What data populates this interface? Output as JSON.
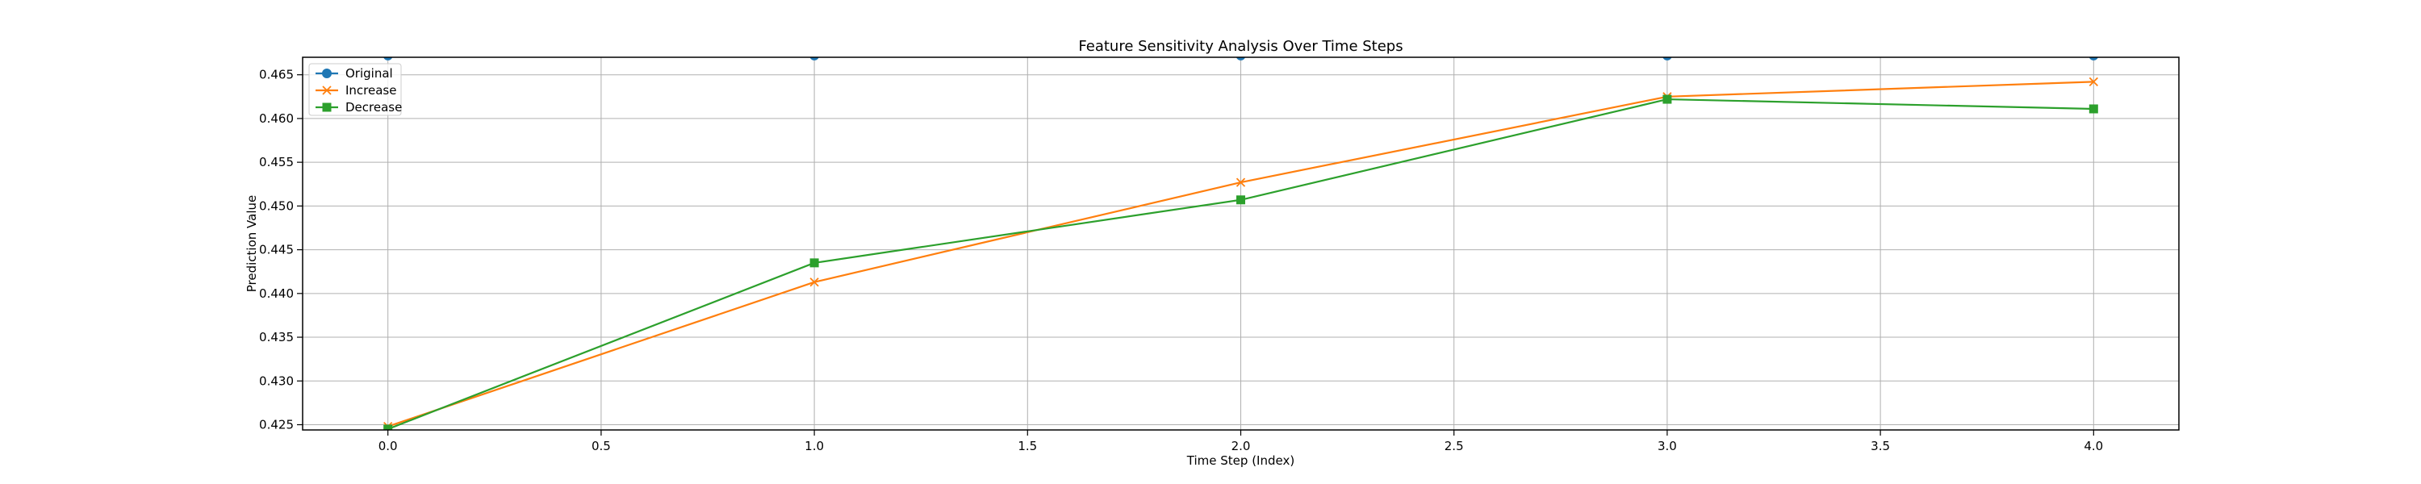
{
  "chart_data": {
    "type": "line",
    "title": "Feature Sensitivity Analysis Over Time Steps",
    "xlabel": "Time Step (Index)",
    "ylabel": "Prediction Value",
    "x": [
      0,
      1,
      2,
      3,
      4
    ],
    "xlim": [
      -0.2,
      4.2
    ],
    "ylim": [
      0.4244,
      0.467
    ],
    "xticks": [
      0.0,
      0.5,
      1.0,
      1.5,
      2.0,
      2.5,
      3.0,
      3.5,
      4.0
    ],
    "xtick_labels": [
      "0.0",
      "0.5",
      "1.0",
      "1.5",
      "2.0",
      "2.5",
      "3.0",
      "3.5",
      "4.0"
    ],
    "yticks": [
      0.425,
      0.43,
      0.435,
      0.44,
      0.445,
      0.45,
      0.455,
      0.46,
      0.465
    ],
    "ytick_labels": [
      "0.425",
      "0.430",
      "0.435",
      "0.440",
      "0.445",
      "0.450",
      "0.455",
      "0.460",
      "0.465"
    ],
    "grid": true,
    "legend_position": "top-left",
    "series": [
      {
        "name": "Original",
        "color": "#1f77b4",
        "marker": "circle",
        "values": [
          0.4672,
          0.4672,
          0.4672,
          0.4672,
          0.4672
        ]
      },
      {
        "name": "Increase",
        "color": "#ff7f0e",
        "marker": "x",
        "values": [
          0.4248,
          0.4413,
          0.4527,
          0.4625,
          0.4642
        ]
      },
      {
        "name": "Decrease",
        "color": "#2ca02c",
        "marker": "square",
        "values": [
          0.4245,
          0.4435,
          0.4507,
          0.4622,
          0.4611
        ]
      }
    ]
  }
}
